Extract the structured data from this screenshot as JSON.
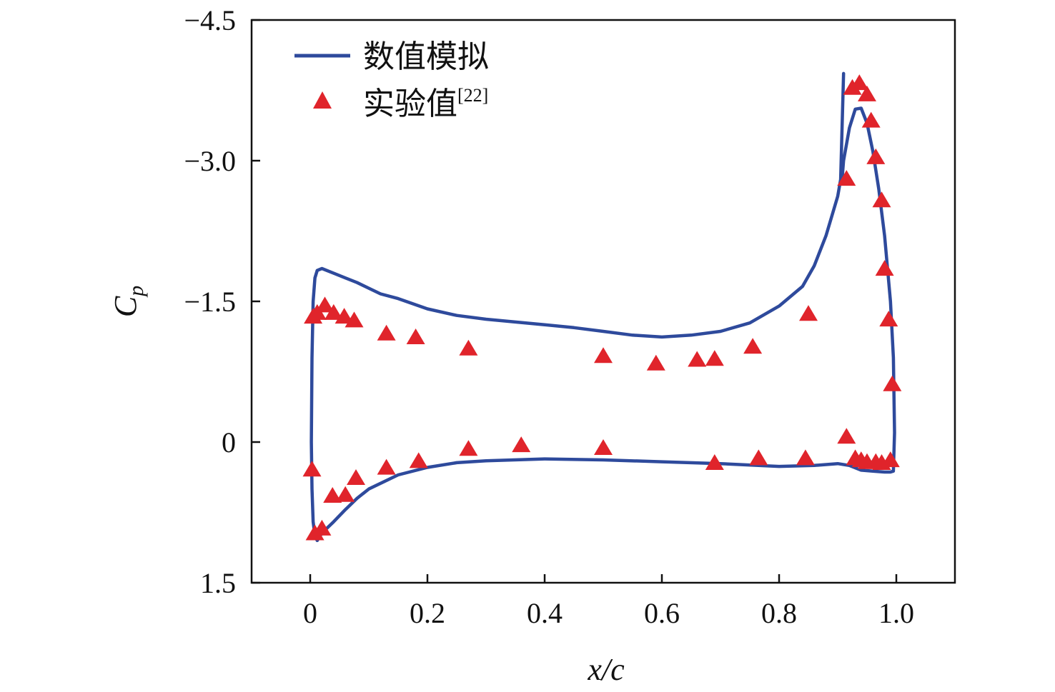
{
  "chart_data": {
    "type": "line",
    "xlabel": "x/c",
    "ylabel": "C",
    "ylabel_sub": "p",
    "xlim": [
      -0.1,
      1.1
    ],
    "ylim": [
      1.5,
      -4.5
    ],
    "y_inverted": true,
    "x_ticks": [
      0,
      0.2,
      0.4,
      0.6,
      0.8,
      1.0
    ],
    "x_tick_labels": [
      "0",
      "0.2",
      "0.4",
      "0.6",
      "0.8",
      "1.0"
    ],
    "y_ticks": [
      -4.5,
      -3.0,
      -1.5,
      0,
      1.5
    ],
    "y_tick_labels": [
      "−4.5",
      "−3.0",
      "−1.5",
      "0",
      "1.5"
    ],
    "grid": false,
    "legend_position": "top-left",
    "series": [
      {
        "name": "数值模拟",
        "kind": "line",
        "color": "#2e4a9c",
        "x": [
          0.91,
          0.905,
          0.9,
          0.88,
          0.86,
          0.84,
          0.8,
          0.75,
          0.7,
          0.65,
          0.6,
          0.55,
          0.5,
          0.45,
          0.4,
          0.35,
          0.3,
          0.25,
          0.2,
          0.15,
          0.12,
          0.1,
          0.08,
          0.06,
          0.04,
          0.02,
          0.012,
          0.008,
          0.005,
          0.003,
          0.002,
          0.003,
          0.005,
          0.008,
          0.012,
          0.02,
          0.04,
          0.06,
          0.08,
          0.1,
          0.15,
          0.2,
          0.25,
          0.3,
          0.4,
          0.5,
          0.6,
          0.7,
          0.8,
          0.86,
          0.9,
          0.92,
          0.94,
          0.96,
          0.98,
          0.99,
          0.995,
          0.997,
          0.995,
          0.99,
          0.98,
          0.97,
          0.96,
          0.95,
          0.94,
          0.93,
          0.92,
          0.91,
          0.908,
          0.91
        ],
        "y": [
          -3.93,
          -2.8,
          -2.62,
          -2.2,
          -1.88,
          -1.66,
          -1.45,
          -1.27,
          -1.18,
          -1.14,
          -1.12,
          -1.14,
          -1.18,
          -1.22,
          -1.25,
          -1.28,
          -1.31,
          -1.35,
          -1.42,
          -1.53,
          -1.58,
          -1.64,
          -1.7,
          -1.75,
          -1.8,
          -1.85,
          -1.83,
          -1.75,
          -1.5,
          -0.9,
          0.0,
          0.5,
          0.85,
          1.0,
          1.05,
          0.97,
          0.85,
          0.72,
          0.6,
          0.5,
          0.35,
          0.27,
          0.22,
          0.2,
          0.18,
          0.19,
          0.21,
          0.23,
          0.26,
          0.25,
          0.23,
          0.25,
          0.3,
          0.31,
          0.32,
          0.32,
          0.31,
          -0.1,
          -0.9,
          -1.5,
          -2.2,
          -2.7,
          -3.1,
          -3.4,
          -3.56,
          -3.55,
          -3.35,
          -3.0,
          -2.85,
          -2.8
        ]
      },
      {
        "name": "实验值",
        "name_ref": "[22]",
        "kind": "scatter",
        "marker": "triangle",
        "color": "#e0242b",
        "x": [
          0.005,
          0.012,
          0.025,
          0.04,
          0.058,
          0.075,
          0.13,
          0.18,
          0.27,
          0.5,
          0.59,
          0.66,
          0.69,
          0.755,
          0.85,
          0.915,
          0.925,
          0.937,
          0.95,
          0.957,
          0.965,
          0.975,
          0.98,
          0.987,
          0.993,
          0.003,
          0.008,
          0.02,
          0.038,
          0.06,
          0.078,
          0.13,
          0.185,
          0.27,
          0.36,
          0.5,
          0.69,
          0.765,
          0.845,
          0.915,
          0.93,
          0.94,
          0.95,
          0.965,
          0.975,
          0.99
        ],
        "y": [
          -1.33,
          -1.37,
          -1.45,
          -1.37,
          -1.33,
          -1.29,
          -1.15,
          -1.11,
          -0.99,
          -0.91,
          -0.83,
          -0.87,
          -0.88,
          -1.01,
          -1.36,
          -2.8,
          -3.77,
          -3.82,
          -3.7,
          -3.42,
          -3.03,
          -2.57,
          -1.84,
          -1.3,
          -0.61,
          0.3,
          0.98,
          0.93,
          0.58,
          0.57,
          0.39,
          0.28,
          0.21,
          0.08,
          0.04,
          0.07,
          0.23,
          0.18,
          0.18,
          -0.05,
          0.18,
          0.2,
          0.22,
          0.22,
          0.23,
          0.2
        ]
      }
    ]
  }
}
